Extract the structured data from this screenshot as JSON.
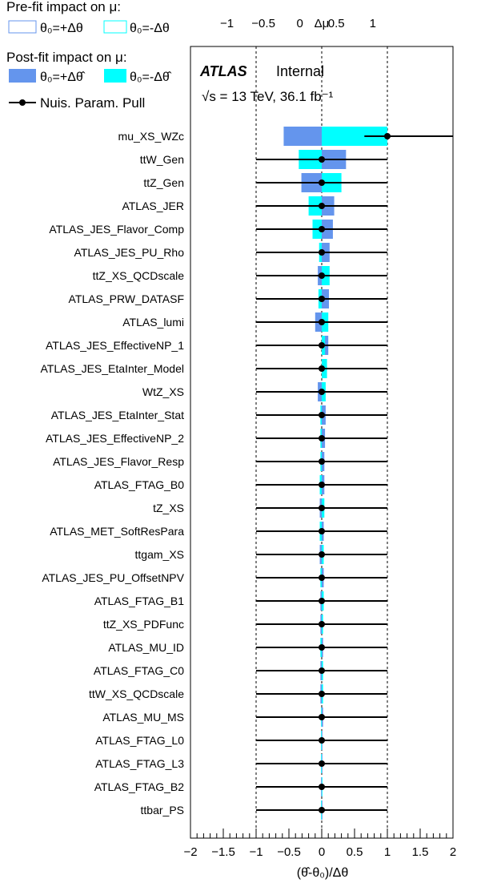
{
  "legend": {
    "prefit_title": "Pre-fit impact on μ:",
    "prefit_plus": "θ₀=+Δθ",
    "prefit_minus": "θ₀=-Δθ",
    "postfit_title": "Post-fit impact on μ:",
    "postfit_plus": "θ₀=+Δθ̂",
    "postfit_minus": "θ₀=-Δθ̂",
    "pull_label": "Nuis. Param. Pull"
  },
  "atlas": {
    "label": "ATLAS",
    "status": "Internal",
    "energy": "√s = 13 TeV, 36.1 fb⁻¹"
  },
  "colors": {
    "postfit_plus": "#6495ed",
    "postfit_minus": "#00ffff",
    "prefit_plus_edge": "#6495ed",
    "prefit_minus_edge": "#00ffff",
    "pull": "#000000"
  },
  "chart_data": {
    "type": "ranking",
    "xlabel": "(θ̂-θ₀)/Δθ",
    "toplabel": "Δμ",
    "xlim": [
      -2,
      2
    ],
    "top_lim": [
      -1.5,
      2.1
    ],
    "x_ticks": [
      "−2",
      "−1.5",
      "−1",
      "−0.5",
      "0",
      "0.5",
      "1",
      "1.5",
      "2"
    ],
    "x_tick_values": [
      -2,
      -1.5,
      -1,
      -0.5,
      0,
      0.5,
      1,
      1.5,
      2
    ],
    "top_ticks": [
      "−1",
      "−0.5",
      "0",
      "0.5",
      "1"
    ],
    "top_tick_values": [
      -1,
      -0.5,
      0,
      0.5,
      1
    ],
    "grid_lines": [
      -1,
      0,
      1
    ],
    "parameters": [
      {
        "name": "mu_XS_WZc",
        "pull": 1.0,
        "pull_err_lo": 0.35,
        "pull_err_hi": 1.0,
        "impact_plus": -0.58,
        "impact_minus": 1.0
      },
      {
        "name": "ttW_Gen",
        "pull": 0.0,
        "pull_err_lo": 1.0,
        "pull_err_hi": 1.0,
        "impact_plus": 0.37,
        "impact_minus": -0.35
      },
      {
        "name": "ttZ_Gen",
        "pull": 0.0,
        "pull_err_lo": 1.0,
        "pull_err_hi": 1.0,
        "impact_plus": -0.31,
        "impact_minus": 0.3
      },
      {
        "name": "ATLAS_JER",
        "pull": 0.0,
        "pull_err_lo": 1.0,
        "pull_err_hi": 1.0,
        "impact_plus": 0.19,
        "impact_minus": -0.2
      },
      {
        "name": "ATLAS_JES_Flavor_Comp",
        "pull": 0.0,
        "pull_err_lo": 1.0,
        "pull_err_hi": 1.0,
        "impact_plus": 0.17,
        "impact_minus": -0.14
      },
      {
        "name": "ATLAS_JES_PU_Rho",
        "pull": 0.0,
        "pull_err_lo": 1.0,
        "pull_err_hi": 1.0,
        "impact_plus": 0.12,
        "impact_minus": -0.04
      },
      {
        "name": "ttZ_XS_QCDscale",
        "pull": 0.0,
        "pull_err_lo": 1.0,
        "pull_err_hi": 1.0,
        "impact_plus": -0.06,
        "impact_minus": 0.12
      },
      {
        "name": "ATLAS_PRW_DATASF",
        "pull": 0.0,
        "pull_err_lo": 1.0,
        "pull_err_hi": 1.0,
        "impact_plus": 0.11,
        "impact_minus": -0.05
      },
      {
        "name": "ATLAS_lumi",
        "pull": 0.0,
        "pull_err_lo": 1.0,
        "pull_err_hi": 1.0,
        "impact_plus": -0.1,
        "impact_minus": 0.1
      },
      {
        "name": "ATLAS_JES_EffectiveNP_1",
        "pull": 0.0,
        "pull_err_lo": 1.0,
        "pull_err_hi": 1.0,
        "impact_plus": 0.1,
        "impact_minus": 0.05
      },
      {
        "name": "ATLAS_JES_EtaInter_Model",
        "pull": 0.0,
        "pull_err_lo": 1.0,
        "pull_err_hi": 1.0,
        "impact_plus": 0.04,
        "impact_minus": 0.08
      },
      {
        "name": "WtZ_XS",
        "pull": 0.0,
        "pull_err_lo": 1.0,
        "pull_err_hi": 1.0,
        "impact_plus": -0.06,
        "impact_minus": 0.06
      },
      {
        "name": "ATLAS_JES_EtaInter_Stat",
        "pull": 0.0,
        "pull_err_lo": 1.0,
        "pull_err_hi": 1.0,
        "impact_plus": 0.06,
        "impact_minus": -0.02
      },
      {
        "name": "ATLAS_JES_EffectiveNP_2",
        "pull": 0.0,
        "pull_err_lo": 1.0,
        "pull_err_hi": 1.0,
        "impact_plus": 0.05,
        "impact_minus": -0.02
      },
      {
        "name": "ATLAS_JES_Flavor_Resp",
        "pull": 0.0,
        "pull_err_lo": 1.0,
        "pull_err_hi": 1.0,
        "impact_plus": 0.04,
        "impact_minus": -0.02
      },
      {
        "name": "ATLAS_FTAG_B0",
        "pull": 0.0,
        "pull_err_lo": 1.0,
        "pull_err_hi": 1.0,
        "impact_plus": 0.04,
        "impact_minus": -0.03
      },
      {
        "name": "tZ_XS",
        "pull": 0.0,
        "pull_err_lo": 1.0,
        "pull_err_hi": 1.0,
        "impact_plus": -0.03,
        "impact_minus": 0.04
      },
      {
        "name": "ATLAS_MET_SoftResPara",
        "pull": 0.0,
        "pull_err_lo": 1.0,
        "pull_err_hi": 1.0,
        "impact_plus": 0.03,
        "impact_minus": -0.03
      },
      {
        "name": "ttgam_XS",
        "pull": 0.0,
        "pull_err_lo": 1.0,
        "pull_err_hi": 1.0,
        "impact_plus": -0.03,
        "impact_minus": 0.03
      },
      {
        "name": "ATLAS_JES_PU_OffsetNPV",
        "pull": 0.0,
        "pull_err_lo": 1.0,
        "pull_err_hi": 1.0,
        "impact_plus": 0.03,
        "impact_minus": -0.02
      },
      {
        "name": "ATLAS_FTAG_B1",
        "pull": 0.0,
        "pull_err_lo": 1.0,
        "pull_err_hi": 1.0,
        "impact_plus": -0.02,
        "impact_minus": 0.03
      },
      {
        "name": "ttZ_XS_PDFunc",
        "pull": 0.0,
        "pull_err_lo": 1.0,
        "pull_err_hi": 1.0,
        "impact_plus": -0.02,
        "impact_minus": 0.02
      },
      {
        "name": "ATLAS_MU_ID",
        "pull": 0.0,
        "pull_err_lo": 1.0,
        "pull_err_hi": 1.0,
        "impact_plus": 0.02,
        "impact_minus": -0.02
      },
      {
        "name": "ATLAS_FTAG_C0",
        "pull": 0.0,
        "pull_err_lo": 1.0,
        "pull_err_hi": 1.0,
        "impact_plus": -0.02,
        "impact_minus": 0.02
      },
      {
        "name": "ttW_XS_QCDscale",
        "pull": 0.0,
        "pull_err_lo": 1.0,
        "pull_err_hi": 1.0,
        "impact_plus": -0.02,
        "impact_minus": 0.02
      },
      {
        "name": "ATLAS_MU_MS",
        "pull": 0.0,
        "pull_err_lo": 1.0,
        "pull_err_hi": 1.0,
        "impact_plus": 0.02,
        "impact_minus": -0.01
      },
      {
        "name": "ATLAS_FTAG_L0",
        "pull": 0.0,
        "pull_err_lo": 1.0,
        "pull_err_hi": 1.0,
        "impact_plus": 0.01,
        "impact_minus": -0.01
      },
      {
        "name": "ATLAS_FTAG_L3",
        "pull": 0.0,
        "pull_err_lo": 1.0,
        "pull_err_hi": 1.0,
        "impact_plus": 0.01,
        "impact_minus": -0.01
      },
      {
        "name": "ATLAS_FTAG_B2",
        "pull": 0.0,
        "pull_err_lo": 1.0,
        "pull_err_hi": 1.0,
        "impact_plus": -0.01,
        "impact_minus": 0.01
      },
      {
        "name": "ttbar_PS",
        "pull": 0.0,
        "pull_err_lo": 1.0,
        "pull_err_hi": 1.0,
        "impact_plus": 0.01,
        "impact_minus": -0.01
      }
    ]
  }
}
